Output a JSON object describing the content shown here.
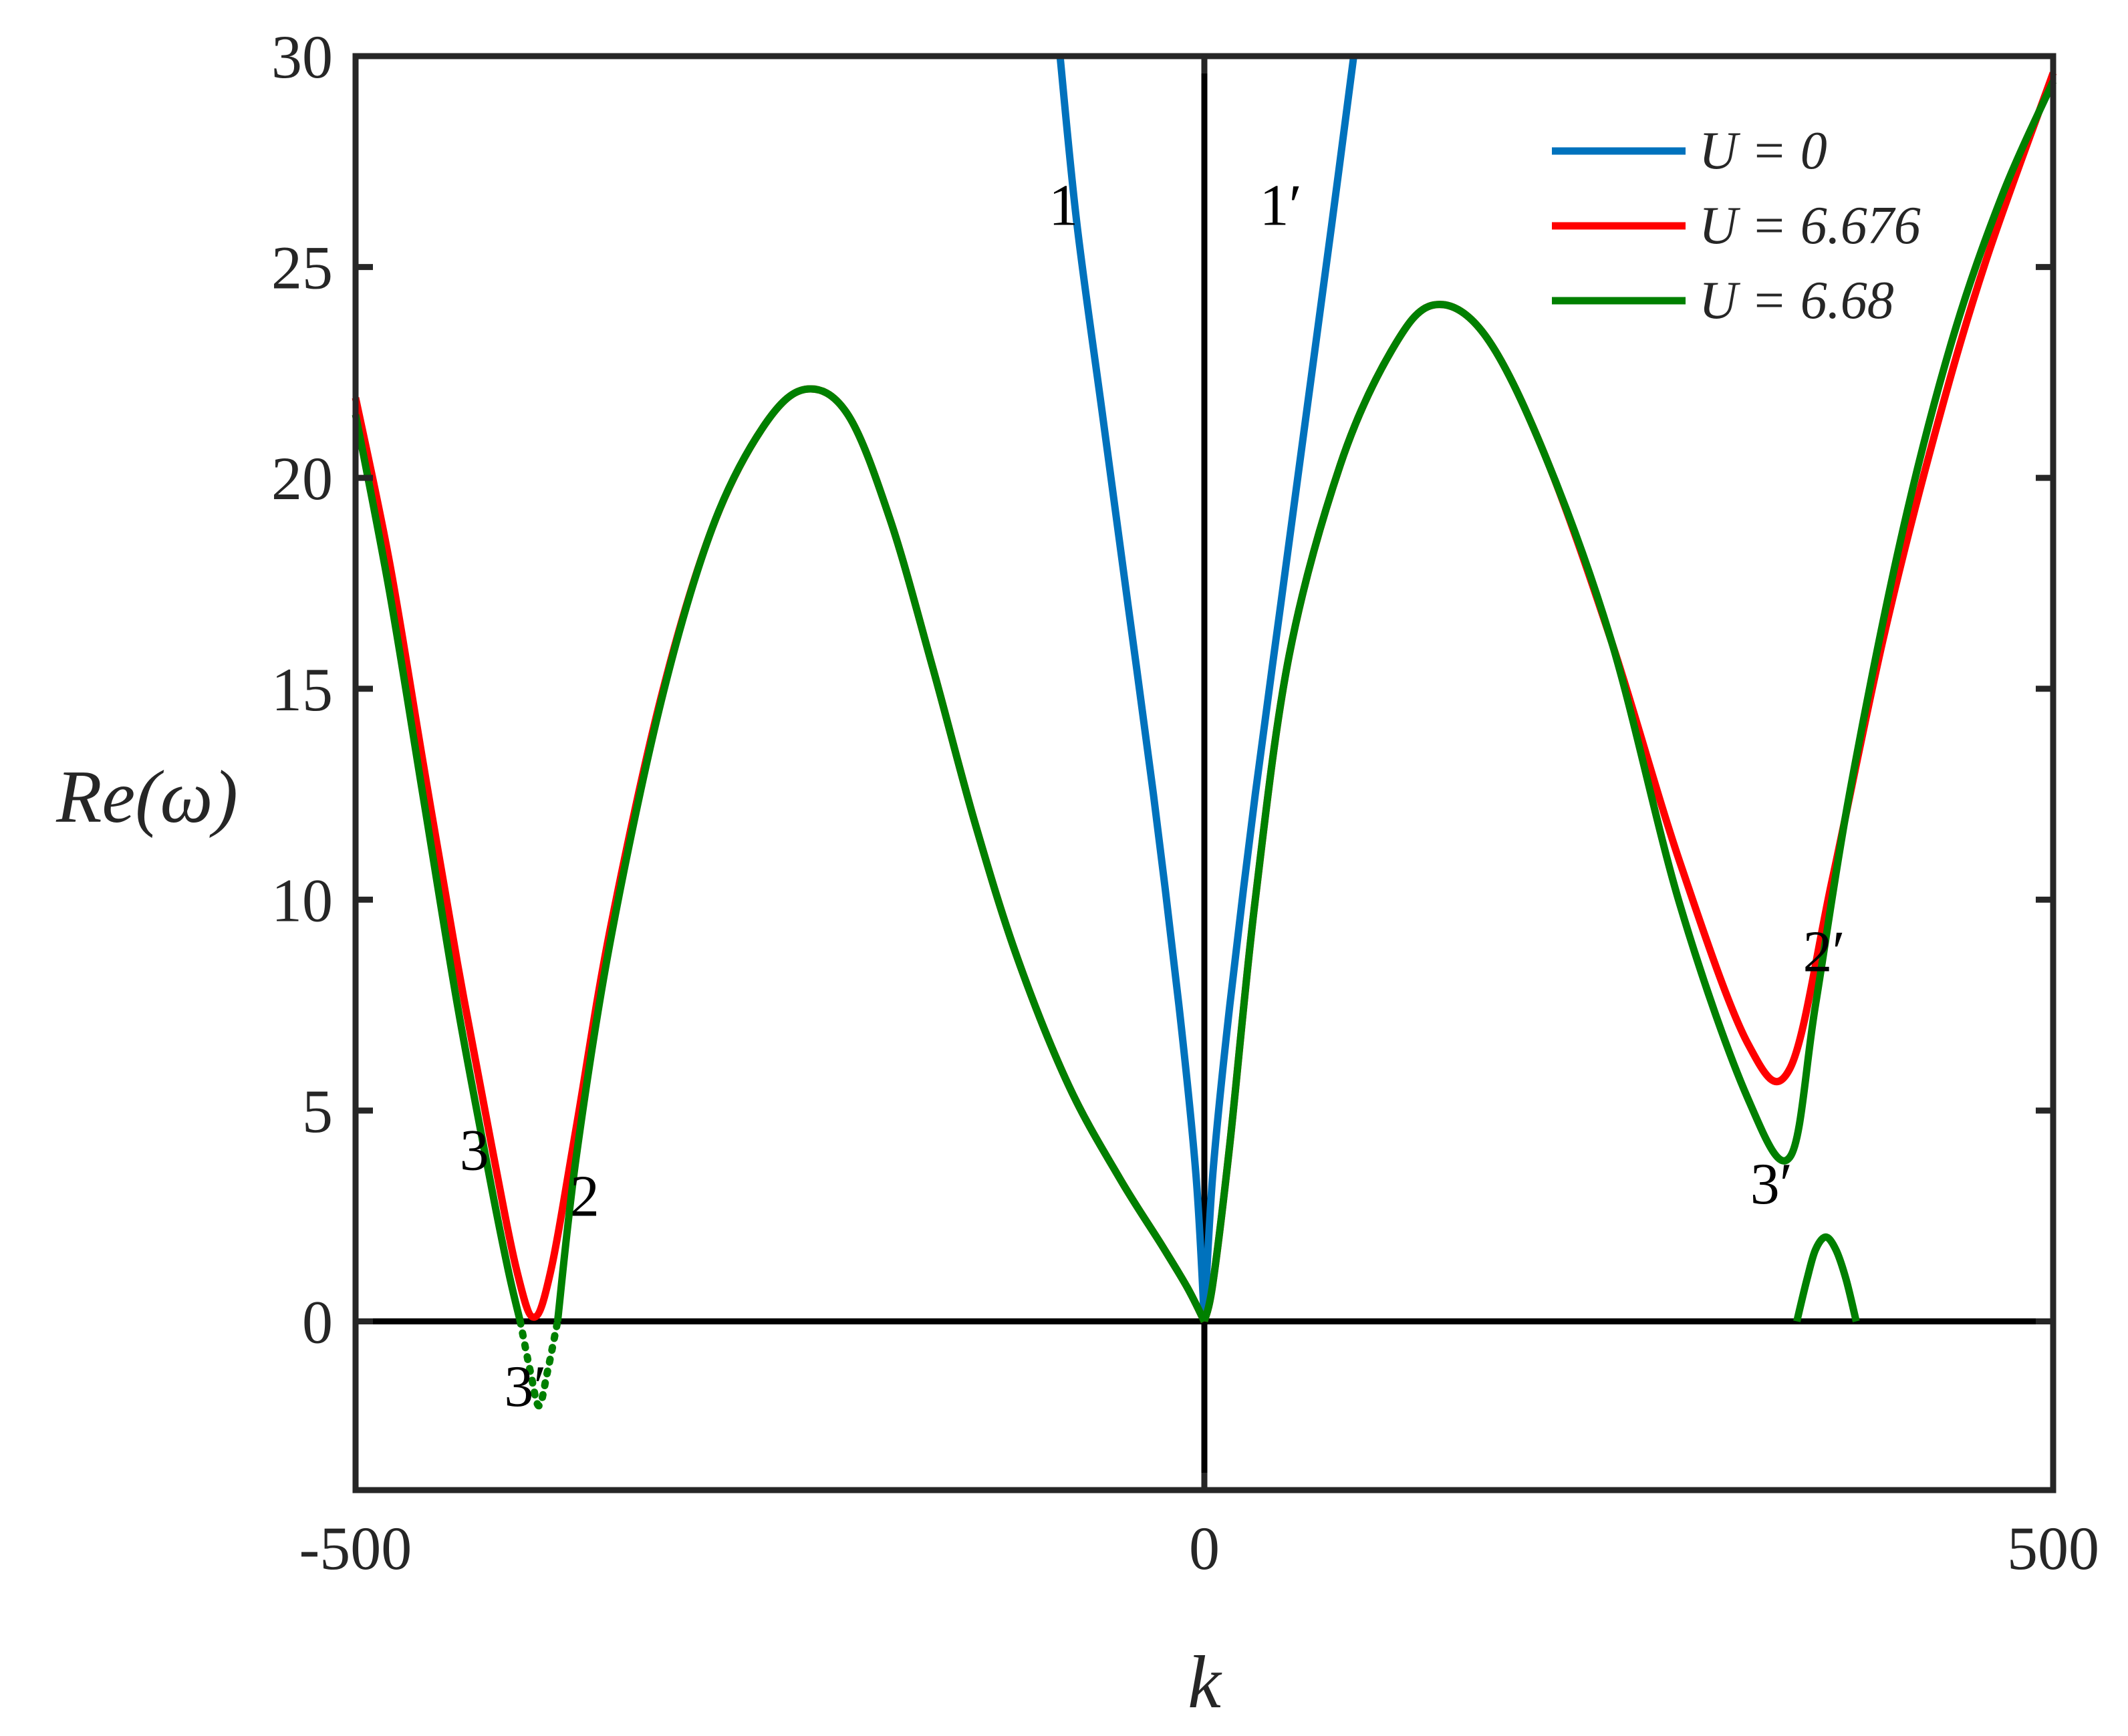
{
  "chart_data": {
    "type": "line",
    "title": "",
    "xlabel": "k",
    "ylabel": "Re(ω)",
    "xlim": [
      -500,
      500
    ],
    "ylim": [
      -4,
      30
    ],
    "xticks": [
      -500,
      0,
      500
    ],
    "xtick_labels": [
      "-500",
      "0",
      "500"
    ],
    "yticks": [
      0,
      5,
      10,
      15,
      20,
      25,
      30
    ],
    "ytick_labels": [
      "0",
      "5",
      "10",
      "15",
      "20",
      "25",
      "30"
    ],
    "grid": false,
    "legend_position": "top-right",
    "reference_lines": {
      "x": 0,
      "y": 0
    },
    "series": [
      {
        "name": "U = 0",
        "color": "#0072BD",
        "segments": [
          {
            "style": "solid",
            "points": [
              [
                -85,
                30
              ],
              [
                -75,
                26
              ],
              [
                -60,
                21.5
              ],
              [
                -45,
                17
              ],
              [
                -30,
                12.5
              ],
              [
                -15,
                7.5
              ],
              [
                -5,
                3.5
              ],
              [
                0,
                0
              ]
            ]
          },
          {
            "style": "solid",
            "points": [
              [
                0,
                0
              ],
              [
                5,
                3.5
              ],
              [
                15,
                7.5
              ],
              [
                30,
                12.5
              ],
              [
                45,
                17
              ],
              [
                60,
                21.5
              ],
              [
                75,
                26
              ],
              [
                88,
                30
              ]
            ]
          }
        ]
      },
      {
        "name": "U = 6.676",
        "color": "#FF0000",
        "segments": [
          {
            "style": "solid",
            "points": [
              [
                -500,
                21.9
              ],
              [
                -480,
                18
              ],
              [
                -460,
                13.2
              ],
              [
                -440,
                8.5
              ],
              [
                -420,
                4.2
              ],
              [
                -405,
                1.2
              ],
              [
                -395,
                0.1
              ],
              [
                -385,
                1.2
              ],
              [
                -370,
                4.6
              ],
              [
                -350,
                9.3
              ],
              [
                -320,
                14.8
              ],
              [
                -290,
                18.8
              ],
              [
                -260,
                21.2
              ],
              [
                -235,
                22.1
              ],
              [
                -210,
                21.5
              ],
              [
                -185,
                19
              ],
              [
                -160,
                15.5
              ],
              [
                -135,
                11.8
              ],
              [
                -110,
                8.6
              ],
              [
                -80,
                5.6
              ],
              [
                -50,
                3.4
              ],
              [
                -25,
                1.8
              ],
              [
                -10,
                0.8
              ],
              [
                0,
                0
              ]
            ]
          },
          {
            "style": "solid",
            "points": [
              [
                0,
                0
              ],
              [
                5,
                0.9
              ],
              [
                15,
                4.2
              ],
              [
                30,
                10
              ],
              [
                50,
                15.8
              ],
              [
                80,
                20.3
              ],
              [
                110,
                23
              ],
              [
                135,
                24.1
              ],
              [
                165,
                23.4
              ],
              [
                200,
                20.6
              ],
              [
                240,
                16.1
              ],
              [
                280,
                10.9
              ],
              [
                320,
                6.6
              ],
              [
                345,
                6
              ],
              [
                370,
                10.5
              ],
              [
                400,
                16.2
              ],
              [
                430,
                21
              ],
              [
                460,
                25.1
              ],
              [
                500,
                29.6
              ]
            ]
          }
        ]
      },
      {
        "name": "U = 6.68",
        "color": "#008000",
        "segments": [
          {
            "style": "solid",
            "points": [
              [
                -500,
                21.5
              ],
              [
                -480,
                17.3
              ],
              [
                -460,
                12.4
              ],
              [
                -440,
                7.5
              ],
              [
                -420,
                3.2
              ],
              [
                -410,
                1.2
              ],
              [
                -403,
                0
              ]
            ]
          },
          {
            "style": "dotted",
            "points": [
              [
                -403,
                0
              ],
              [
                -397,
                -1.2
              ],
              [
                -392,
                -2
              ],
              [
                -387,
                -1.2
              ],
              [
                -381,
                0
              ]
            ]
          },
          {
            "style": "solid",
            "points": [
              [
                -381,
                0
              ],
              [
                -370,
                3.9
              ],
              [
                -350,
                9
              ],
              [
                -320,
                14.7
              ],
              [
                -290,
                18.8
              ],
              [
                -260,
                21.2
              ],
              [
                -235,
                22.1
              ],
              [
                -210,
                21.5
              ],
              [
                -185,
                19
              ],
              [
                -160,
                15.5
              ],
              [
                -135,
                11.8
              ],
              [
                -110,
                8.6
              ],
              [
                -80,
                5.6
              ],
              [
                -50,
                3.4
              ],
              [
                -25,
                1.8
              ],
              [
                -10,
                0.8
              ],
              [
                0,
                0
              ]
            ]
          },
          {
            "style": "solid",
            "points": [
              [
                0,
                0
              ],
              [
                5,
                0.9
              ],
              [
                15,
                4.2
              ],
              [
                30,
                10
              ],
              [
                50,
                15.8
              ],
              [
                80,
                20.3
              ],
              [
                110,
                23
              ],
              [
                135,
                24.1
              ],
              [
                165,
                23.4
              ],
              [
                200,
                20.6
              ],
              [
                240,
                16.1
              ],
              [
                280,
                9.9
              ],
              [
                320,
                5.3
              ],
              [
                345,
                3.9
              ],
              [
                360,
                7.5
              ],
              [
                380,
                12.5
              ],
              [
                410,
                18.5
              ],
              [
                440,
                23.2
              ],
              [
                470,
                26.7
              ],
              [
                500,
                29.4
              ]
            ]
          },
          {
            "style": "solid",
            "points": [
              [
                349,
                0
              ],
              [
                355,
                1
              ],
              [
                360,
                1.7
              ],
              [
                366,
                2
              ],
              [
                372,
                1.7
              ],
              [
                378,
                1
              ],
              [
                384,
                0
              ]
            ]
          }
        ]
      }
    ],
    "annotations": [
      {
        "text": "1",
        "x": -83,
        "y": 26
      },
      {
        "text": "1′",
        "x": 45,
        "y": 26
      },
      {
        "text": "3",
        "x": -430,
        "y": 3.6
      },
      {
        "text": "2",
        "x": -365,
        "y": 2.5
      },
      {
        "text": "3′",
        "x": -400,
        "y": -2
      },
      {
        "text": "2′",
        "x": 365,
        "y": 8.3
      },
      {
        "text": "3′",
        "x": 334,
        "y": 2.8
      }
    ]
  }
}
